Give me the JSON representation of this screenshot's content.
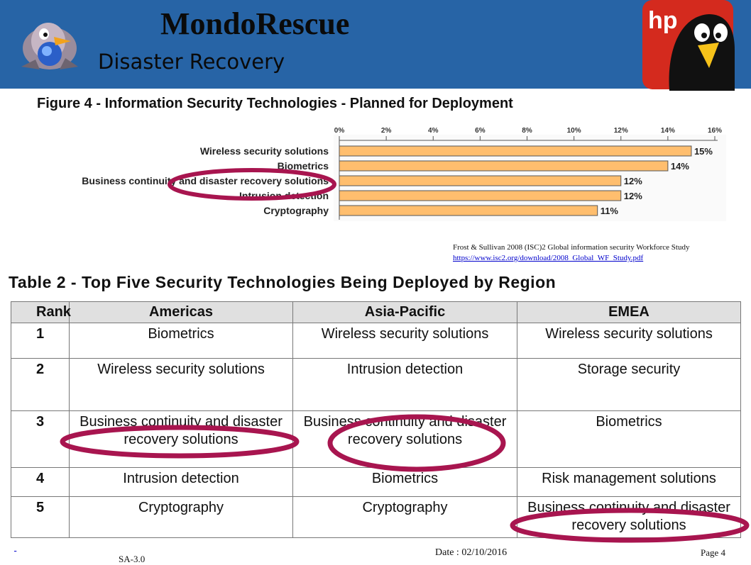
{
  "slide": {
    "title": "MondoRescue",
    "subtitle": "Disaster Recovery",
    "logo_right_text": "hp"
  },
  "colors": {
    "header_bg": "#2764a6",
    "bar_fill": "#ffbe6e",
    "highlight_ring": "#a8154f"
  },
  "figure": {
    "title": "Figure 4 - Information Security Technologies - Planned for Deployment"
  },
  "chart_data": {
    "type": "bar",
    "orientation": "horizontal",
    "title": "Figure 4 - Information Security Technologies - Planned for Deployment",
    "categories": [
      "Wireless security solutions",
      "Biometrics",
      "Business continuity and disaster recovery solutions",
      "Intrusion detection",
      "Cryptography"
    ],
    "values": [
      15,
      14,
      12,
      12,
      11
    ],
    "value_labels": [
      "15%",
      "14%",
      "12%",
      "12%",
      "11%"
    ],
    "xticks": [
      "0%",
      "2%",
      "4%",
      "6%",
      "8%",
      "10%",
      "12%",
      "14%",
      "16%"
    ],
    "xlim": [
      0,
      16
    ],
    "highlighted": "Business continuity and disaster recovery solutions"
  },
  "source": {
    "text": "Frost & Sullivan 2008 (ISC)2 Global information security Workforce Study",
    "link": "https://www.isc2.org/download/2008_Global_WF_Study.pdf"
  },
  "table": {
    "title": "Table 2 - Top Five Security Technologies Being Deployed by Region",
    "headers": [
      "Rank",
      "Americas",
      "Asia-Pacific",
      "EMEA"
    ],
    "rows": [
      [
        "1",
        "Biometrics",
        "Wireless security solutions",
        "Wireless security solutions"
      ],
      [
        "2",
        "Wireless security solutions",
        "Intrusion detection",
        "Storage security"
      ],
      [
        "3",
        "Business continuity and disaster recovery solutions",
        "Business continuity and disaster recovery solutions",
        "Biometrics"
      ],
      [
        "4",
        "Intrusion detection",
        "Biometrics",
        "Risk management solutions"
      ],
      [
        "5",
        "Cryptography",
        "Cryptography",
        "Business continuity and disaster recovery solutions"
      ]
    ]
  },
  "footer": {
    "date": "Date : 02/10/2016",
    "page": "Page 4",
    "left_line2": "SA-3.0"
  }
}
